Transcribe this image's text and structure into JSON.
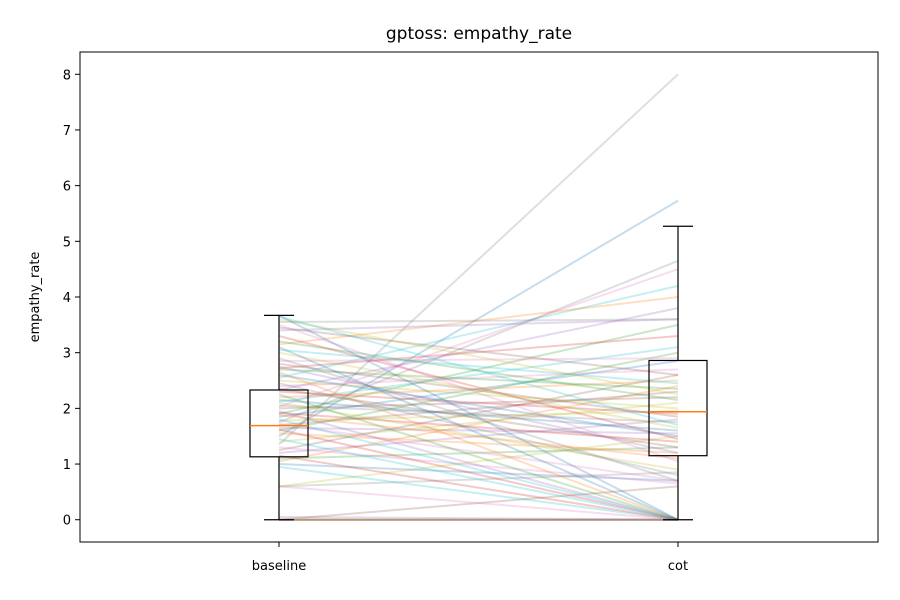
{
  "chart_data": {
    "type": "box",
    "title": "gptoss: empathy_rate",
    "xlabel": "",
    "ylabel": "empathy_rate",
    "categories": [
      "baseline",
      "cot"
    ],
    "ylim": [
      -0.4,
      8.4
    ],
    "yticks": [
      0,
      1,
      2,
      3,
      4,
      5,
      6,
      7,
      8
    ],
    "grid": false,
    "boxes": [
      {
        "category": "baseline",
        "whisker_low": 0.0,
        "q1": 1.13,
        "median": 1.69,
        "q3": 2.33,
        "whisker_high": 3.67
      },
      {
        "category": "cot",
        "whisker_low": 0.0,
        "q1": 1.15,
        "median": 1.94,
        "q3": 2.86,
        "whisker_high": 5.27
      }
    ],
    "median_color": "#ff7f0e",
    "box_color": "#000000",
    "paired_lines": {
      "colors": [
        "#1f77b4",
        "#ff7f0e",
        "#2ca02c",
        "#d62728",
        "#9467bd",
        "#8c564b",
        "#e377c2",
        "#7f7f7f",
        "#bcbd22",
        "#17becf"
      ],
      "opacity": 0.25,
      "pairs": [
        [
          0.0,
          0.0
        ],
        [
          0.0,
          0.0
        ],
        [
          0.0,
          0.0
        ],
        [
          0.0,
          0.0
        ],
        [
          0.05,
          0.0
        ],
        [
          0.0,
          0.6
        ],
        [
          0.6,
          0.0
        ],
        [
          0.6,
          0.85
        ],
        [
          0.6,
          1.5
        ],
        [
          0.95,
          0.0
        ],
        [
          1.0,
          0.7
        ],
        [
          1.05,
          2.4
        ],
        [
          1.1,
          1.3
        ],
        [
          1.15,
          0.0
        ],
        [
          1.2,
          1.8
        ],
        [
          1.25,
          2.6
        ],
        [
          1.3,
          0.65
        ],
        [
          1.35,
          8.0
        ],
        [
          1.4,
          2.1
        ],
        [
          1.45,
          0.0
        ],
        [
          1.5,
          5.73
        ],
        [
          1.55,
          1.2
        ],
        [
          1.6,
          3.0
        ],
        [
          1.62,
          0.0
        ],
        [
          1.65,
          1.55
        ],
        [
          1.7,
          2.3
        ],
        [
          1.72,
          0.7
        ],
        [
          1.75,
          4.65
        ],
        [
          1.78,
          1.95
        ],
        [
          1.8,
          0.0
        ],
        [
          1.85,
          2.85
        ],
        [
          1.88,
          1.1
        ],
        [
          1.9,
          3.5
        ],
        [
          1.92,
          1.4
        ],
        [
          1.95,
          0.0
        ],
        [
          2.0,
          2.2
        ],
        [
          2.03,
          4.5
        ],
        [
          2.05,
          1.75
        ],
        [
          2.1,
          0.9
        ],
        [
          2.12,
          3.1
        ],
        [
          2.15,
          1.6
        ],
        [
          2.2,
          2.5
        ],
        [
          2.25,
          0.0
        ],
        [
          2.3,
          1.9
        ],
        [
          2.33,
          3.8
        ],
        [
          2.35,
          1.3
        ],
        [
          2.4,
          2.7
        ],
        [
          2.45,
          0.8
        ],
        [
          2.5,
          2.0
        ],
        [
          2.55,
          4.2
        ],
        [
          2.6,
          1.5
        ],
        [
          2.65,
          0.0
        ],
        [
          2.7,
          2.35
        ],
        [
          2.72,
          3.3
        ],
        [
          2.75,
          1.2
        ],
        [
          2.8,
          1.85
        ],
        [
          2.85,
          2.9
        ],
        [
          2.9,
          0.7
        ],
        [
          3.0,
          1.65
        ],
        [
          3.05,
          2.45
        ],
        [
          3.1,
          0.0
        ],
        [
          3.15,
          4.0
        ],
        [
          3.2,
          2.15
        ],
        [
          3.3,
          1.45
        ],
        [
          3.4,
          3.6
        ],
        [
          3.45,
          2.6
        ],
        [
          3.5,
          1.05
        ],
        [
          3.55,
          3.6
        ],
        [
          3.6,
          2.25
        ],
        [
          3.65,
          1.7
        ],
        [
          3.67,
          0.0
        ]
      ]
    }
  }
}
